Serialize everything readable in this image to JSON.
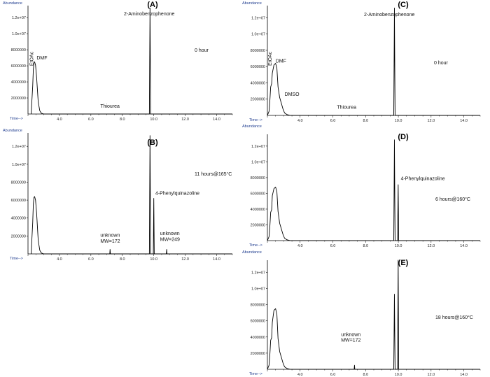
{
  "chart_data": [
    {
      "type": "line",
      "panel": "(A)",
      "condition": "0 hour",
      "ylabel": "Abundance",
      "xlabel": "Time-->",
      "xlim": [
        2.0,
        15.0
      ],
      "ylim": [
        0,
        13500000
      ],
      "x_ticks": [
        "4.0",
        "6.0",
        "8.0",
        "10.0",
        "12.0",
        "14.0"
      ],
      "y_ticks": [
        "2000000",
        "4000000",
        "6000000",
        "8000000",
        "1.0e+07",
        "1.2e+07"
      ],
      "series": [
        {
          "x": [
            2.2,
            2.3,
            2.34,
            2.38,
            2.42,
            2.48,
            2.55,
            2.65,
            2.75,
            2.85,
            3.0,
            7.0,
            9.72,
            9.76,
            9.8,
            15.0
          ],
          "values": [
            0,
            3500000,
            5600000,
            6400000,
            6500000,
            6100000,
            4500000,
            1500000,
            400000,
            100000,
            0,
            0,
            0,
            13200000,
            0,
            0
          ]
        }
      ],
      "annotations": [
        {
          "text": "EtOAc",
          "x": 2.33,
          "y": 6000000,
          "vertical": true
        },
        {
          "text": "DMF",
          "x": 2.55,
          "y": 6800000
        },
        {
          "text": "2-Aminobenzophenone",
          "x": 8.1,
          "y": 12300000
        },
        {
          "text": "Thiourea",
          "x": 6.6,
          "y": 800000
        }
      ]
    },
    {
      "type": "line",
      "panel": "(B)",
      "condition": "11 hours@165°C",
      "ylabel": "Abundance",
      "xlabel": "Time-->",
      "xlim": [
        2.0,
        15.0
      ],
      "ylim": [
        0,
        13500000
      ],
      "x_ticks": [
        "4.0",
        "6.0",
        "8.0",
        "10.0",
        "12.0",
        "14.0"
      ],
      "y_ticks": [
        "2000000",
        "4000000",
        "6000000",
        "8000000",
        "1.0e+07",
        "1.2e+07"
      ],
      "series": [
        {
          "x": [
            2.2,
            2.3,
            2.34,
            2.38,
            2.42,
            2.48,
            2.55,
            2.65,
            2.75,
            2.85,
            3.0,
            7.2,
            7.22,
            7.24,
            9.72,
            9.76,
            9.8,
            9.97,
            10.0,
            10.03,
            10.8,
            10.82,
            10.84,
            15.0
          ],
          "values": [
            0,
            3500000,
            5600000,
            6300000,
            6400000,
            6000000,
            4500000,
            1500000,
            400000,
            100000,
            0,
            0,
            500000,
            0,
            0,
            13200000,
            0,
            0,
            6200000,
            0,
            0,
            500000,
            0,
            0
          ]
        }
      ],
      "annotations": [
        {
          "text": "4-Phenylquinazoline",
          "x": 10.1,
          "y": 6600000
        },
        {
          "text": "unknown",
          "x": 6.6,
          "y": 1900000
        },
        {
          "text": "MW=172",
          "x": 6.6,
          "y": 1250000
        },
        {
          "text": "unknown",
          "x": 10.4,
          "y": 2100000
        },
        {
          "text": "MW=249",
          "x": 10.4,
          "y": 1450000
        }
      ]
    },
    {
      "type": "line",
      "panel": "(C)",
      "condition": "0 hour",
      "ylabel": "Abundance",
      "xlabel": "Time-->",
      "xlim": [
        2.0,
        15.0
      ],
      "ylim": [
        0,
        13500000
      ],
      "x_ticks": [
        "4.0",
        "6.0",
        "8.0",
        "10.0",
        "12.0",
        "14.0"
      ],
      "y_ticks": [
        "2000000",
        "4000000",
        "6000000",
        "8000000",
        "1.0e+07",
        "1.2e+07"
      ],
      "series": [
        {
          "x": [
            2.0,
            2.1,
            2.15,
            2.2,
            2.26,
            2.3,
            2.4,
            2.5,
            2.58,
            2.65,
            2.75,
            2.85,
            2.95,
            3.05,
            3.2,
            3.4,
            6.7,
            9.72,
            9.76,
            9.8,
            15.0
          ],
          "values": [
            0,
            500000,
            1800000,
            3500000,
            3900000,
            5200000,
            6200000,
            6400000,
            5800000,
            3500000,
            2200000,
            1500000,
            800000,
            300000,
            100000,
            0,
            0,
            0,
            13200000,
            0,
            0
          ]
        }
      ],
      "annotations": [
        {
          "text": "EtOAc",
          "x": 2.25,
          "y": 6100000,
          "vertical": true
        },
        {
          "text": "DMF",
          "x": 2.5,
          "y": 6500000
        },
        {
          "text": "DMSO",
          "x": 3.05,
          "y": 2400000
        },
        {
          "text": "2-Aminobenzophenone",
          "x": 7.9,
          "y": 12200000
        },
        {
          "text": "Thiourea",
          "x": 6.25,
          "y": 800000
        }
      ]
    },
    {
      "type": "line",
      "panel": "(D)",
      "condition": "6 hours@160°C",
      "ylabel": "Abundance",
      "xlabel": "Time-->",
      "xlim": [
        2.0,
        15.0
      ],
      "ylim": [
        0,
        13500000
      ],
      "x_ticks": [
        "4.0",
        "6.0",
        "8.0",
        "10.0",
        "12.0",
        "14.0"
      ],
      "y_ticks": [
        "2000000",
        "4000000",
        "6000000",
        "8000000",
        "1.0e+07",
        "1.2e+07"
      ],
      "series": [
        {
          "x": [
            2.0,
            2.1,
            2.15,
            2.2,
            2.26,
            2.3,
            2.4,
            2.5,
            2.58,
            2.65,
            2.75,
            2.85,
            2.95,
            3.05,
            3.2,
            3.4,
            9.72,
            9.76,
            9.8,
            9.95,
            9.99,
            10.02,
            15.0
          ],
          "values": [
            0,
            500000,
            1800000,
            3600000,
            3900000,
            5700000,
            6600000,
            6800000,
            6200000,
            3700000,
            2200000,
            1500000,
            800000,
            300000,
            100000,
            0,
            0,
            12800000,
            0,
            0,
            7100000,
            0,
            0
          ]
        }
      ],
      "annotations": [
        {
          "text": "4-Phenylquinazoline",
          "x": 10.15,
          "y": 7700000
        }
      ]
    },
    {
      "type": "line",
      "panel": "(E)",
      "condition": "18 hours@160°C",
      "ylabel": "Abundance",
      "xlabel": "Time-->",
      "xlim": [
        2.0,
        15.0
      ],
      "ylim": [
        0,
        13500000
      ],
      "x_ticks": [
        "4.0",
        "6.0",
        "8.0",
        "10.0",
        "12.0",
        "14.0"
      ],
      "y_ticks": [
        "2000000",
        "4000000",
        "6000000",
        "8000000",
        "1.0e+07",
        "1.2e+07"
      ],
      "series": [
        {
          "x": [
            2.0,
            2.1,
            2.15,
            2.2,
            2.26,
            2.3,
            2.4,
            2.5,
            2.58,
            2.65,
            2.75,
            2.85,
            2.95,
            3.05,
            3.2,
            3.4,
            7.3,
            7.32,
            7.34,
            9.72,
            9.76,
            9.8,
            9.95,
            9.99,
            10.02,
            15.0
          ],
          "values": [
            0,
            500000,
            1800000,
            3600000,
            3900000,
            5800000,
            7300000,
            7500000,
            6800000,
            3800000,
            2200000,
            1500000,
            800000,
            300000,
            100000,
            0,
            0,
            500000,
            0,
            0,
            9300000,
            0,
            0,
            13500000,
            0,
            0
          ]
        }
      ],
      "annotations": [
        {
          "text": "unknown",
          "x": 6.5,
          "y": 4100000
        },
        {
          "text": "MW=172",
          "x": 6.5,
          "y": 3400000
        }
      ]
    }
  ]
}
